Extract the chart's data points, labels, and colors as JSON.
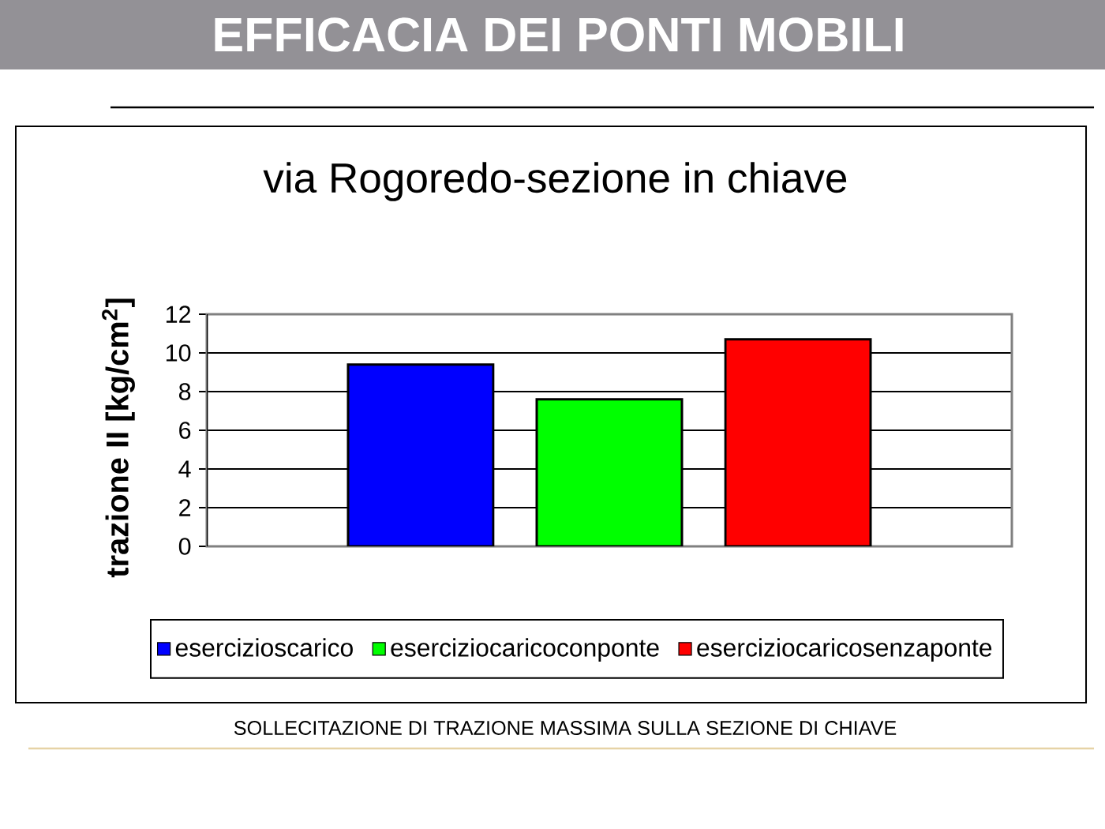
{
  "chart_data": {
    "type": "bar",
    "title": "EFFICACIA DEI PONTI MOBILI",
    "subtitle": "via Rogoredo-sezione in chiave",
    "ylabel": "trazione II [kg/cm$^{2}$]",
    "categories": [
      null
    ],
    "series": [
      {
        "name": "esercizioscarico",
        "color": "#0000ff",
        "values": [
          9.4
        ]
      },
      {
        "name": "eserciziocaricoconponte",
        "color": "#00ff00",
        "values": [
          7.6
        ]
      },
      {
        "name": "eserciziocaricosenzaponte",
        "color": "#ff0000",
        "values": [
          10.7
        ]
      }
    ],
    "ylim": [
      0,
      12
    ],
    "yticks": [
      0,
      2,
      4,
      6,
      8,
      10,
      12
    ],
    "grid": "y",
    "legend": "bottom",
    "annotations": [
      "SOLLECITAZIONE DI TRAZIONE MASSIMA SULLA SEZIONE DI CHIAVE"
    ]
  }
}
